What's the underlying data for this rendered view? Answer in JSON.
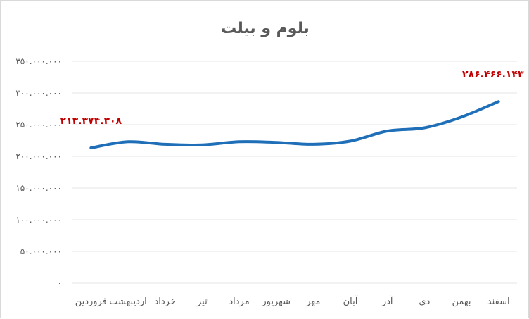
{
  "chart_data": {
    "type": "line",
    "title": "بلوم و بیلت",
    "categories": [
      "فروردین",
      "اردیبهشت",
      "خرداد",
      "تیر",
      "مرداد",
      "شهریور",
      "مهر",
      "آبان",
      "آذر",
      "دی",
      "بهمن",
      "اسفند"
    ],
    "series": [
      {
        "values": [
          213374308,
          223000000,
          219000000,
          218000000,
          223000000,
          222000000,
          219000000,
          224000000,
          240000000,
          245000000,
          262000000,
          286466143
        ],
        "color": "#1f6fb8"
      }
    ],
    "ylim": [
      0,
      350000000
    ],
    "yticks": [
      0,
      50000000,
      100000000,
      150000000,
      200000000,
      250000000,
      300000000,
      350000000
    ],
    "ytick_labels": [
      "۰",
      "۵۰.۰۰۰.۰۰۰",
      "۱۰۰.۰۰۰.۰۰۰",
      "۱۵۰.۰۰۰.۰۰۰",
      "۲۰۰.۰۰۰.۰۰۰",
      "۲۵۰.۰۰۰.۰۰۰",
      "۳۰۰.۰۰۰.۰۰۰",
      "۳۵۰.۰۰۰.۰۰۰"
    ],
    "data_labels": [
      {
        "index": 0,
        "text": "۲۱۳.۳۷۴.۳۰۸"
      },
      {
        "index": 11,
        "text": "۲۸۶.۴۶۶.۱۴۳"
      }
    ],
    "grid": true,
    "legend": "none",
    "xlabel": "",
    "ylabel": ""
  }
}
